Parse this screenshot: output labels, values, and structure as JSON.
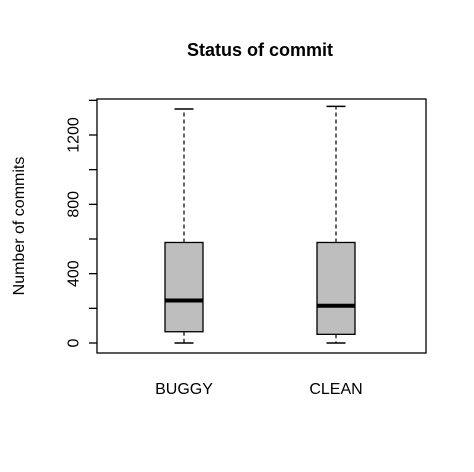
{
  "chart_data": {
    "type": "boxplot",
    "title": "Status of commit",
    "xlabel": "",
    "ylabel": "Number of commits",
    "categories": [
      "BUGGY",
      "CLEAN"
    ],
    "boxes": [
      {
        "category": "BUGGY",
        "min": 0,
        "q1": 65,
        "median": 245,
        "q3": 580,
        "max": 1350
      },
      {
        "category": "CLEAN",
        "min": 0,
        "q1": 50,
        "median": 215,
        "q3": 580,
        "max": 1365
      }
    ],
    "yticks": [
      0,
      400,
      800,
      1200
    ],
    "ylim": [
      -50,
      1400
    ],
    "colors": {
      "box_fill": "#bebebe",
      "stroke": "#000000"
    }
  }
}
